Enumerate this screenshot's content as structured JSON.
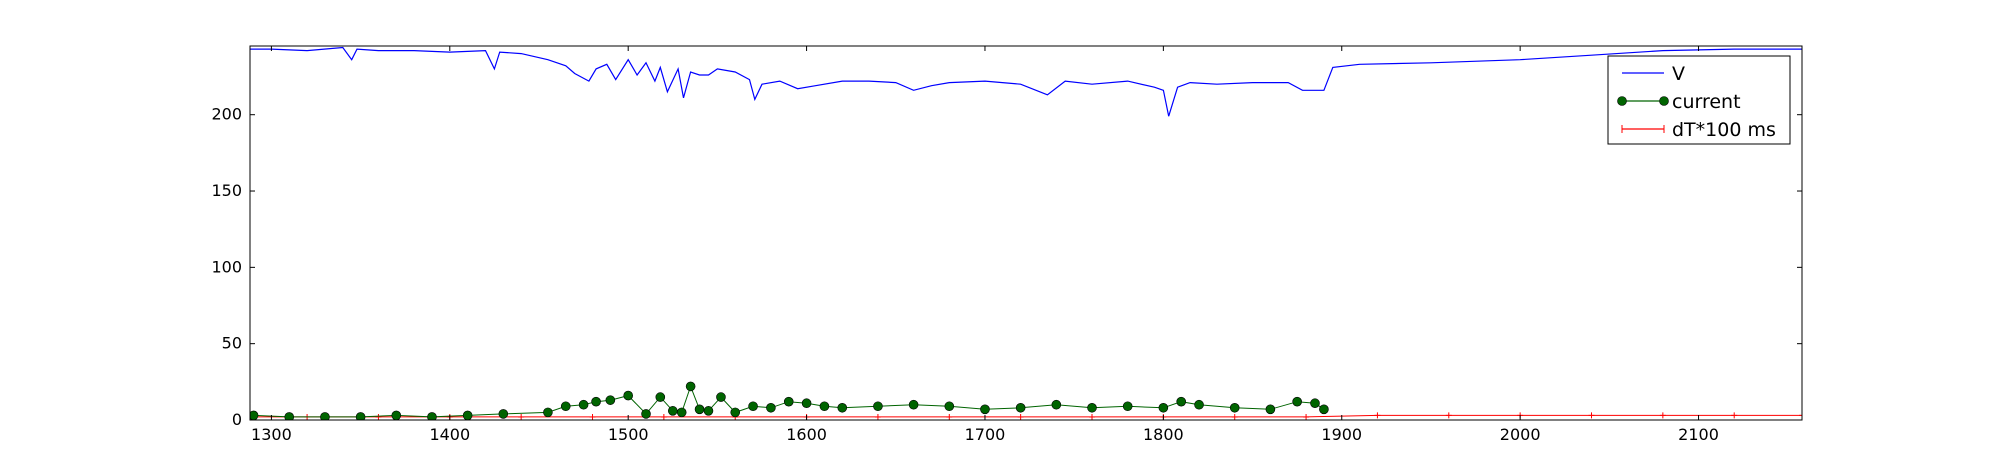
{
  "chart_data": {
    "type": "line",
    "title": "",
    "xlabel": "",
    "ylabel": "",
    "xlim": [
      1288,
      2158
    ],
    "ylim": [
      0,
      245
    ],
    "x_ticks": [
      1300,
      1400,
      1500,
      1600,
      1700,
      1800,
      1900,
      2000,
      2100
    ],
    "y_ticks": [
      0,
      50,
      100,
      150,
      200
    ],
    "grid": false,
    "legend_position": "top-right",
    "series": [
      {
        "name": "V",
        "style": "line",
        "color": "#0000ff",
        "x": [
          1288,
          1300,
          1320,
          1340,
          1345,
          1348,
          1360,
          1380,
          1400,
          1420,
          1425,
          1428,
          1440,
          1455,
          1465,
          1470,
          1478,
          1482,
          1488,
          1493,
          1500,
          1505,
          1510,
          1515,
          1518,
          1522,
          1528,
          1531,
          1535,
          1540,
          1545,
          1550,
          1560,
          1568,
          1571,
          1575,
          1585,
          1595,
          1605,
          1620,
          1635,
          1650,
          1660,
          1670,
          1680,
          1700,
          1720,
          1735,
          1745,
          1760,
          1780,
          1795,
          1800,
          1803,
          1808,
          1815,
          1830,
          1850,
          1870,
          1878,
          1890,
          1895,
          1910,
          1950,
          2000,
          2040,
          2080,
          2120,
          2158
        ],
        "y": [
          243,
          243,
          242,
          244,
          236,
          243,
          242,
          242,
          241,
          242,
          230,
          241,
          240,
          236,
          232,
          227,
          222,
          230,
          233,
          223,
          236,
          226,
          234,
          222,
          231,
          215,
          230,
          211,
          228,
          226,
          226,
          230,
          228,
          223,
          210,
          220,
          222,
          217,
          219,
          222,
          222,
          221,
          216,
          219,
          221,
          222,
          220,
          213,
          222,
          220,
          222,
          218,
          216,
          199,
          218,
          221,
          220,
          221,
          221,
          216,
          216,
          231,
          233,
          234,
          236,
          239,
          242,
          243,
          243
        ]
      },
      {
        "name": "current",
        "style": "line-marker-circle",
        "color": "#006400",
        "x": [
          1290,
          1310,
          1330,
          1350,
          1370,
          1390,
          1410,
          1430,
          1455,
          1465,
          1475,
          1482,
          1490,
          1500,
          1510,
          1518,
          1525,
          1530,
          1535,
          1540,
          1545,
          1552,
          1560,
          1570,
          1580,
          1590,
          1600,
          1610,
          1620,
          1640,
          1660,
          1680,
          1700,
          1720,
          1740,
          1760,
          1780,
          1800,
          1810,
          1820,
          1840,
          1860,
          1875,
          1885,
          1890
        ],
        "y": [
          3,
          2,
          2,
          2,
          3,
          2,
          3,
          4,
          5,
          9,
          10,
          12,
          13,
          16,
          4,
          15,
          6,
          5,
          22,
          7,
          6,
          15,
          5,
          9,
          8,
          12,
          11,
          9,
          8,
          9,
          10,
          9,
          7,
          8,
          10,
          8,
          9,
          8,
          12,
          10,
          8,
          7,
          12,
          11,
          7
        ]
      },
      {
        "name": "dT*100 ms",
        "style": "line-marker-plus",
        "color": "#ff0000",
        "x": [
          1288,
          1320,
          1360,
          1400,
          1440,
          1480,
          1520,
          1560,
          1600,
          1640,
          1680,
          1720,
          1760,
          1800,
          1840,
          1880,
          1920,
          1960,
          2000,
          2040,
          2080,
          2120,
          2158
        ],
        "y": [
          2,
          2,
          2,
          2,
          2,
          2,
          2,
          2,
          2,
          2,
          2,
          2,
          2,
          2,
          2,
          2,
          3,
          3,
          3,
          3,
          3,
          3,
          3
        ]
      }
    ]
  }
}
